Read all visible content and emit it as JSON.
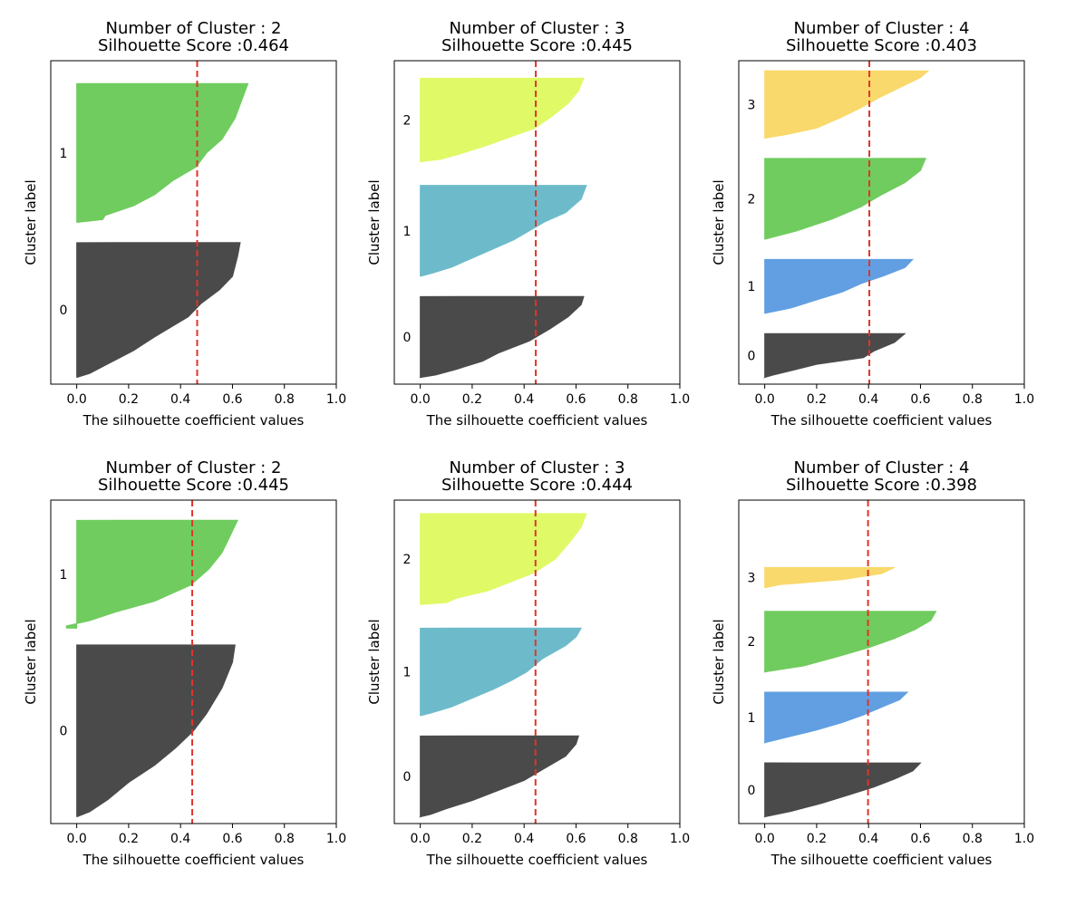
{
  "figure": {
    "background": "#ffffff"
  },
  "colors": {
    "0": "#4a4a4a",
    "1": "#70cc5e",
    "2": "#e0f967",
    "3": "#f9d96b",
    "line": "#e0342a"
  },
  "colors_by_k": {
    "2": [
      "#4a4a4a",
      "#70cc5e"
    ],
    "3": [
      "#4a4a4a",
      "#6dbbca",
      "#e0f967"
    ],
    "4": [
      "#4a4a4a",
      "#619fe2",
      "#70cc5e",
      "#f9d96b"
    ]
  },
  "chart_data": [
    {
      "type": "area",
      "title_line1": "Number of Cluster : 2",
      "title_line2": "Silhouette Score :0.464",
      "xlabel": "The silhouette coefficient values",
      "ylabel": "Cluster label",
      "xlim": [
        -0.1,
        1.0
      ],
      "xticks": [
        "0.0",
        "0.2",
        "0.4",
        "0.6",
        "0.8",
        "1.0"
      ],
      "score": 0.464,
      "clusters": [
        {
          "label": "0",
          "y0": 10,
          "y1": 210,
          "profile": [
            [
              0,
              0.63
            ],
            [
              0.1,
              0.62
            ],
            [
              0.25,
              0.6
            ],
            [
              0.35,
              0.55
            ],
            [
              0.45,
              0.48
            ],
            [
              0.55,
              0.43
            ],
            [
              0.7,
              0.3
            ],
            [
              0.8,
              0.22
            ],
            [
              0.9,
              0.12
            ],
            [
              0.97,
              0.05
            ],
            [
              1,
              0.0
            ]
          ]
        },
        {
          "label": "1",
          "y0": 240,
          "y1": 446,
          "profile": [
            [
              0,
              0.66
            ],
            [
              0.1,
              0.64
            ],
            [
              0.25,
              0.61
            ],
            [
              0.4,
              0.56
            ],
            [
              0.5,
              0.5
            ],
            [
              0.6,
              0.46
            ],
            [
              0.7,
              0.37
            ],
            [
              0.8,
              0.3
            ],
            [
              0.88,
              0.22
            ],
            [
              0.95,
              0.11
            ],
            [
              0.98,
              0.1
            ],
            [
              1,
              0.0
            ]
          ]
        }
      ]
    },
    {
      "type": "area",
      "title_line1": "Number of Cluster : 3",
      "title_line2": "Silhouette Score :0.445",
      "xlabel": "The silhouette coefficient values",
      "ylabel": "Cluster label",
      "xlim": [
        -0.1,
        1.0
      ],
      "xticks": [
        "0.0",
        "0.2",
        "0.4",
        "0.6",
        "0.8",
        "1.0"
      ],
      "score": 0.445,
      "clusters": [
        {
          "label": "0",
          "y0": 10,
          "y1": 130,
          "profile": [
            [
              0,
              0.63
            ],
            [
              0.1,
              0.62
            ],
            [
              0.25,
              0.57
            ],
            [
              0.4,
              0.5
            ],
            [
              0.55,
              0.42
            ],
            [
              0.7,
              0.3
            ],
            [
              0.8,
              0.24
            ],
            [
              0.9,
              0.14
            ],
            [
              0.97,
              0.06
            ],
            [
              1,
              0.0
            ]
          ]
        },
        {
          "label": "1",
          "y0": 160,
          "y1": 295,
          "profile": [
            [
              0,
              0.64
            ],
            [
              0.15,
              0.62
            ],
            [
              0.3,
              0.56
            ],
            [
              0.4,
              0.48
            ],
            [
              0.5,
              0.42
            ],
            [
              0.6,
              0.36
            ],
            [
              0.7,
              0.28
            ],
            [
              0.8,
              0.2
            ],
            [
              0.9,
              0.12
            ],
            [
              0.97,
              0.04
            ],
            [
              1,
              0.0
            ]
          ]
        },
        {
          "label": "2",
          "y0": 330,
          "y1": 454,
          "profile": [
            [
              0,
              0.63
            ],
            [
              0.15,
              0.61
            ],
            [
              0.3,
              0.57
            ],
            [
              0.45,
              0.51
            ],
            [
              0.6,
              0.44
            ],
            [
              0.7,
              0.35
            ],
            [
              0.8,
              0.26
            ],
            [
              0.9,
              0.16
            ],
            [
              0.97,
              0.08
            ],
            [
              1,
              0.0
            ]
          ]
        }
      ]
    },
    {
      "type": "area",
      "title_line1": "Number of Cluster : 4",
      "title_line2": "Silhouette Score :0.403",
      "xlabel": "The silhouette coefficient values",
      "ylabel": "Cluster label",
      "xlim": [
        -0.1,
        1.0
      ],
      "xticks": [
        "0.0",
        "0.2",
        "0.4",
        "0.6",
        "0.8",
        "1.0"
      ],
      "score": 0.403,
      "clusters": [
        {
          "label": "0",
          "y0": 10,
          "y1": 75,
          "profile": [
            [
              0,
              0.54
            ],
            [
              0.2,
              0.5
            ],
            [
              0.4,
              0.42
            ],
            [
              0.55,
              0.38
            ],
            [
              0.7,
              0.2
            ],
            [
              0.85,
              0.1
            ],
            [
              0.95,
              0.03
            ],
            [
              1,
              0.0
            ]
          ]
        },
        {
          "label": "1",
          "y0": 105,
          "y1": 185,
          "profile": [
            [
              0,
              0.57
            ],
            [
              0.15,
              0.54
            ],
            [
              0.3,
              0.46
            ],
            [
              0.45,
              0.37
            ],
            [
              0.6,
              0.3
            ],
            [
              0.75,
              0.2
            ],
            [
              0.9,
              0.1
            ],
            [
              1,
              0.0
            ]
          ]
        },
        {
          "label": "2",
          "y0": 215,
          "y1": 335,
          "profile": [
            [
              0,
              0.62
            ],
            [
              0.15,
              0.6
            ],
            [
              0.3,
              0.54
            ],
            [
              0.45,
              0.45
            ],
            [
              0.6,
              0.37
            ],
            [
              0.75,
              0.26
            ],
            [
              0.9,
              0.12
            ],
            [
              1,
              0.0
            ]
          ]
        },
        {
          "label": "3",
          "y0": 365,
          "y1": 465,
          "profile": [
            [
              0,
              0.63
            ],
            [
              0.1,
              0.6
            ],
            [
              0.25,
              0.52
            ],
            [
              0.4,
              0.44
            ],
            [
              0.55,
              0.37
            ],
            [
              0.7,
              0.29
            ],
            [
              0.85,
              0.2
            ],
            [
              0.95,
              0.08
            ],
            [
              1,
              0.0
            ]
          ]
        }
      ]
    },
    {
      "type": "area",
      "title_line1": "Number of Cluster : 2",
      "title_line2": "Silhouette Score :0.445",
      "xlabel": "The silhouette coefficient values",
      "ylabel": "Cluster label",
      "xlim": [
        -0.1,
        1.0
      ],
      "xticks": [
        "0.0",
        "0.2",
        "0.4",
        "0.6",
        "0.8",
        "1.0"
      ],
      "score": 0.445,
      "clusters": [
        {
          "label": "0",
          "y0": 10,
          "y1": 265,
          "profile": [
            [
              0,
              0.61
            ],
            [
              0.1,
              0.6
            ],
            [
              0.25,
              0.56
            ],
            [
              0.4,
              0.5
            ],
            [
              0.5,
              0.45
            ],
            [
              0.6,
              0.38
            ],
            [
              0.7,
              0.3
            ],
            [
              0.8,
              0.2
            ],
            [
              0.9,
              0.12
            ],
            [
              0.97,
              0.05
            ],
            [
              1,
              0.0
            ]
          ]
        },
        {
          "label": "1",
          "y0": 290,
          "y1": 450,
          "profile": [
            [
              0,
              0.62
            ],
            [
              0.1,
              0.6
            ],
            [
              0.3,
              0.56
            ],
            [
              0.45,
              0.51
            ],
            [
              0.6,
              0.44
            ],
            [
              0.75,
              0.3
            ],
            [
              0.85,
              0.15
            ],
            [
              0.93,
              0.05
            ],
            [
              0.98,
              -0.04
            ],
            [
              1,
              -0.04
            ]
          ]
        }
      ]
    },
    {
      "type": "area",
      "title_line1": "Number of Cluster : 3",
      "title_line2": "Silhouette Score :0.444",
      "xlabel": "The silhouette coefficient values",
      "ylabel": "Cluster label",
      "xlim": [
        -0.1,
        1.0
      ],
      "xticks": [
        "0.0",
        "0.2",
        "0.4",
        "0.6",
        "0.8",
        "1.0"
      ],
      "score": 0.444,
      "clusters": [
        {
          "label": "0",
          "y0": 10,
          "y1": 130,
          "profile": [
            [
              0,
              0.61
            ],
            [
              0.1,
              0.6
            ],
            [
              0.25,
              0.56
            ],
            [
              0.4,
              0.48
            ],
            [
              0.55,
              0.4
            ],
            [
              0.7,
              0.28
            ],
            [
              0.8,
              0.2
            ],
            [
              0.9,
              0.1
            ],
            [
              0.97,
              0.04
            ],
            [
              1,
              0.0
            ]
          ]
        },
        {
          "label": "1",
          "y0": 160,
          "y1": 290,
          "profile": [
            [
              0,
              0.62
            ],
            [
              0.1,
              0.6
            ],
            [
              0.2,
              0.56
            ],
            [
              0.35,
              0.47
            ],
            [
              0.5,
              0.41
            ],
            [
              0.6,
              0.35
            ],
            [
              0.7,
              0.28
            ],
            [
              0.8,
              0.2
            ],
            [
              0.9,
              0.12
            ],
            [
              0.97,
              0.04
            ],
            [
              1,
              0.0
            ]
          ]
        },
        {
          "label": "2",
          "y0": 325,
          "y1": 460,
          "profile": [
            [
              0,
              0.64
            ],
            [
              0.15,
              0.62
            ],
            [
              0.3,
              0.58
            ],
            [
              0.5,
              0.52
            ],
            [
              0.65,
              0.44
            ],
            [
              0.75,
              0.35
            ],
            [
              0.85,
              0.26
            ],
            [
              0.93,
              0.14
            ],
            [
              0.98,
              0.1
            ],
            [
              1,
              0.0
            ]
          ]
        }
      ]
    },
    {
      "type": "area",
      "title_line1": "Number of Cluster : 4",
      "title_line2": "Silhouette Score :0.398",
      "xlabel": "The silhouette coefficient values",
      "ylabel": "Cluster label",
      "xlim": [
        -0.1,
        1.0
      ],
      "xticks": [
        "0.0",
        "0.2",
        "0.4",
        "0.6",
        "0.8",
        "1.0"
      ],
      "score": 0.398,
      "clusters": [
        {
          "label": "0",
          "y0": 10,
          "y1": 90,
          "profile": [
            [
              0,
              0.6
            ],
            [
              0.15,
              0.57
            ],
            [
              0.3,
              0.5
            ],
            [
              0.45,
              0.42
            ],
            [
              0.6,
              0.32
            ],
            [
              0.75,
              0.22
            ],
            [
              0.9,
              0.1
            ],
            [
              1,
              0.0
            ]
          ]
        },
        {
          "label": "1",
          "y0": 120,
          "y1": 195,
          "profile": [
            [
              0,
              0.55
            ],
            [
              0.15,
              0.52
            ],
            [
              0.3,
              0.45
            ],
            [
              0.45,
              0.38
            ],
            [
              0.6,
              0.3
            ],
            [
              0.75,
              0.2
            ],
            [
              0.9,
              0.08
            ],
            [
              1,
              0.0
            ]
          ]
        },
        {
          "label": "2",
          "y0": 225,
          "y1": 315,
          "profile": [
            [
              0,
              0.66
            ],
            [
              0.15,
              0.64
            ],
            [
              0.3,
              0.58
            ],
            [
              0.45,
              0.5
            ],
            [
              0.6,
              0.4
            ],
            [
              0.75,
              0.28
            ],
            [
              0.9,
              0.15
            ],
            [
              1,
              0.0
            ]
          ]
        },
        {
          "label": "3",
          "y0": 350,
          "y1": 380,
          "profile": [
            [
              0,
              0.5
            ],
            [
              0.3,
              0.45
            ],
            [
              0.6,
              0.3
            ],
            [
              0.85,
              0.06
            ],
            [
              1,
              0.0
            ]
          ]
        }
      ]
    }
  ]
}
